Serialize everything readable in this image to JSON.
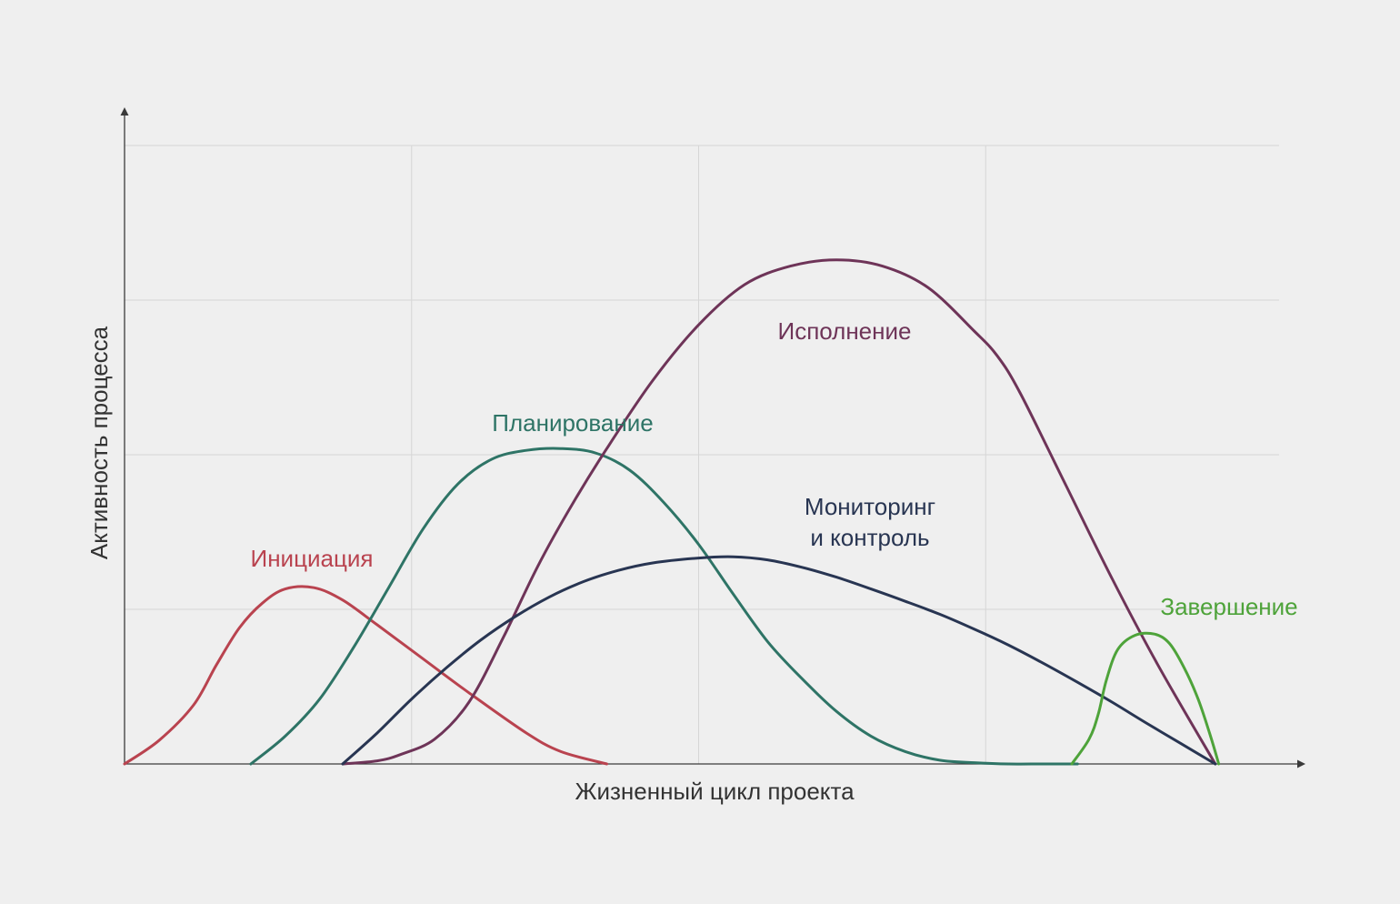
{
  "chart_data": {
    "type": "line",
    "title": "",
    "xlabel": "Жизненный цикл проекта",
    "ylabel": "Активность процесса",
    "xlim": [
      0,
      100
    ],
    "ylim": [
      0,
      100
    ],
    "grid": true,
    "x_gridlines": [
      0,
      25,
      50,
      75
    ],
    "y_gridlines": [
      25,
      50,
      75,
      100
    ],
    "legend": "none",
    "series": [
      {
        "name": "Инициация",
        "color": "#b9434f",
        "x": [
          0,
          3,
          6,
          8,
          10,
          12,
          14,
          16.5,
          19,
          22,
          26,
          30,
          35,
          38,
          42
        ],
        "y": [
          0,
          3.8,
          9.5,
          16,
          22,
          26,
          28.3,
          28.5,
          26.5,
          22.5,
          17,
          11.5,
          5,
          2,
          0
        ]
      },
      {
        "name": "Планирование",
        "color": "#2e7466",
        "x": [
          11,
          14,
          17,
          20,
          23,
          26,
          29,
          32,
          35,
          38,
          41,
          44,
          47,
          50,
          53,
          56,
          59,
          62,
          65,
          68,
          71,
          74,
          77,
          80,
          83
        ],
        "y": [
          0,
          4.5,
          10.5,
          19,
          28.5,
          38,
          45.2,
          49.3,
          50.7,
          51,
          50.3,
          47.5,
          42.2,
          35.5,
          27.5,
          19.8,
          13.8,
          8.5,
          4.5,
          2,
          0.6,
          0.2,
          0,
          0,
          0
        ]
      },
      {
        "name": "Исполнение",
        "color": "#6e3458",
        "x": [
          19,
          22,
          24,
          27,
          30,
          33,
          36,
          39,
          42,
          46,
          50,
          54,
          58,
          62,
          66,
          70,
          74,
          76,
          78,
          82,
          86,
          90,
          95
        ],
        "y": [
          0,
          0.5,
          1.5,
          4,
          10,
          20.5,
          32,
          42,
          51,
          62,
          71,
          77.5,
          80.5,
          81.5,
          80.5,
          77,
          70,
          66,
          60,
          45,
          30,
          16,
          0
        ]
      },
      {
        "name": "Мониторинг и контроль",
        "color": "#283552",
        "x": [
          19,
          22,
          25,
          28,
          31,
          34,
          37,
          40,
          43,
          46,
          50,
          53,
          56,
          59,
          62,
          65,
          68,
          71,
          74,
          77,
          80,
          83,
          86,
          89,
          92,
          95
        ],
        "y": [
          0,
          5,
          10.5,
          15.5,
          20,
          23.8,
          27,
          29.5,
          31.3,
          32.5,
          33.3,
          33.5,
          33,
          31.8,
          30.2,
          28.3,
          26.3,
          24.2,
          21.8,
          19.2,
          16.3,
          13.2,
          10,
          6.6,
          3.3,
          0
        ]
      },
      {
        "name": "Завершение",
        "color": "#4ea33a",
        "x": [
          82.5,
          84,
          84.8,
          85.5,
          86.5,
          88,
          89.7,
          91,
          92.3,
          93.5,
          94.5,
          95.3
        ],
        "y": [
          0,
          4,
          8,
          13.5,
          18.5,
          20.8,
          21,
          19.5,
          15.5,
          10.5,
          5,
          0
        ]
      }
    ],
    "annotations": [
      {
        "series": "Инициация",
        "lines": [
          "Инициация"
        ]
      },
      {
        "series": "Планирование",
        "lines": [
          "Планирование"
        ]
      },
      {
        "series": "Исполнение",
        "lines": [
          "Исполнение"
        ]
      },
      {
        "series": "Мониторинг и контроль",
        "lines": [
          "Мониторинг",
          "и контроль"
        ]
      },
      {
        "series": "Завершение",
        "lines": [
          "Завершение"
        ]
      }
    ]
  }
}
